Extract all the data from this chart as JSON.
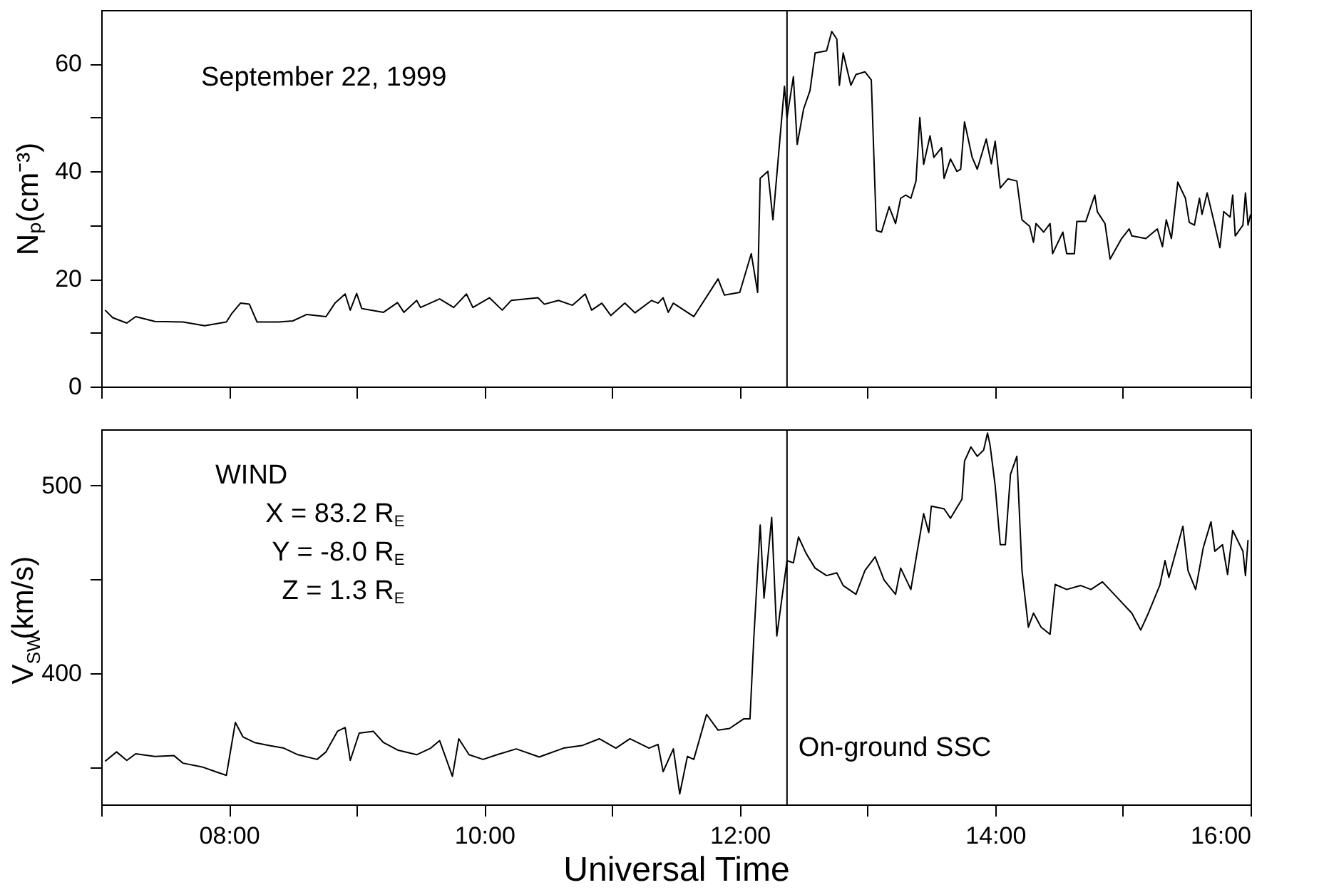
{
  "chart_data": [
    {
      "type": "line",
      "ylabel": "Nₚ(cm⁻³)",
      "annotations": [
        "September 22, 1999"
      ],
      "grid": false,
      "tick_labels": "y",
      "xlim": [
        7,
        16
      ],
      "xticks": [
        {
          "value": 7,
          "label": null
        },
        {
          "value": 8,
          "label": null
        },
        {
          "value": 9,
          "label": null
        },
        {
          "value": 10,
          "label": null
        },
        {
          "value": 11,
          "label": null
        },
        {
          "value": 12,
          "label": null
        },
        {
          "value": 13,
          "label": null
        },
        {
          "value": 14,
          "label": null
        },
        {
          "value": 15,
          "label": null
        },
        {
          "value": 16,
          "label": null
        }
      ],
      "ylim": [
        0,
        70
      ],
      "yticks": [
        0,
        {
          "value": 10,
          "label": null
        },
        20,
        {
          "value": 30,
          "label": null
        },
        40,
        {
          "value": 50,
          "label": null
        },
        60
      ],
      "ref_lines": [
        {
          "axis": "x",
          "value": 12.37,
          "label": null,
          "color": "#000000"
        }
      ],
      "series": [
        {
          "color": "#000000",
          "x": [
            7.03,
            7.09,
            7.2,
            7.27,
            7.42,
            7.64,
            7.81,
            7.98,
            8.02,
            8.09,
            8.16,
            8.22,
            8.39,
            8.5,
            8.61,
            8.76,
            8.83,
            8.91,
            8.95,
            9.0,
            9.04,
            9.21,
            9.32,
            9.37,
            9.47,
            9.5,
            9.65,
            9.76,
            9.86,
            9.91,
            10.04,
            10.14,
            10.21,
            10.42,
            10.47,
            10.58,
            10.69,
            10.79,
            10.84,
            10.92,
            10.99,
            11.1,
            11.18,
            11.31,
            11.36,
            11.4,
            11.44,
            11.48,
            11.64,
            11.83,
            11.88,
            12.0,
            12.09,
            12.14,
            12.16,
            12.22,
            12.26,
            12.35,
            12.37,
            12.42,
            12.45,
            12.5,
            12.55,
            12.59,
            12.68,
            12.72,
            12.76,
            12.78,
            12.81,
            12.87,
            12.91,
            12.98,
            13.03,
            13.07,
            13.11,
            13.17,
            13.22,
            13.26,
            13.3,
            13.34,
            13.38,
            13.41,
            13.44,
            13.49,
            13.52,
            13.58,
            13.6,
            13.65,
            13.7,
            13.73,
            13.76,
            13.82,
            13.86,
            13.93,
            13.97,
            14.0,
            14.04,
            14.1,
            14.17,
            14.21,
            14.27,
            14.3,
            14.32,
            14.38,
            14.43,
            14.45,
            14.53,
            14.56,
            14.62,
            14.64,
            14.71,
            14.78,
            14.8,
            14.86,
            14.9,
            14.99,
            15.05,
            15.07,
            15.18,
            15.27,
            15.31,
            15.34,
            15.38,
            15.43,
            15.49,
            15.52,
            15.56,
            15.6,
            15.62,
            15.66,
            15.72,
            15.76,
            15.79,
            15.84,
            15.86,
            15.88,
            15.94,
            15.96,
            15.98,
            16.0
          ],
          "values": [
            14.2,
            12.8,
            11.8,
            13,
            12.1,
            12,
            11.3,
            12,
            13.5,
            15.5,
            15.3,
            12,
            12,
            12.2,
            13.4,
            13,
            15.5,
            17.2,
            14.2,
            17.3,
            14.5,
            13.8,
            15.6,
            13.8,
            16,
            14.7,
            16.3,
            14.7,
            17.2,
            14.7,
            16.5,
            14.2,
            16,
            16.5,
            15.3,
            16,
            15.1,
            17.2,
            14.2,
            15.5,
            13.2,
            15.5,
            13.7,
            16,
            15.5,
            16.5,
            13.8,
            15.5,
            13,
            20,
            17,
            17.5,
            24.7,
            17.5,
            38.7,
            40,
            31,
            55.8,
            50,
            57.6,
            45,
            51.6,
            55,
            62,
            62.4,
            66,
            64.6,
            56,
            62,
            56,
            58,
            58.5,
            57,
            29,
            28.7,
            33.4,
            30.3,
            35,
            35.6,
            35,
            38.2,
            50,
            41.3,
            46.6,
            42.6,
            44.4,
            38.7,
            42.3,
            40,
            40.4,
            49.2,
            42.6,
            40.4,
            46,
            41.4,
            45.6,
            36.9,
            38.6,
            38.2,
            31,
            29.8,
            26.8,
            30.3,
            28.7,
            30.3,
            24.7,
            28.7,
            24.7,
            24.7,
            30.7,
            30.7,
            35.6,
            32.5,
            30.3,
            23.7,
            27.5,
            29.3,
            28,
            27.5,
            29.3,
            26,
            31,
            27.5,
            38,
            35,
            30.5,
            30,
            35,
            32,
            36,
            30,
            25.8,
            32.5,
            31.5,
            35.6,
            28,
            30,
            36,
            30,
            32
          ]
        }
      ]
    },
    {
      "type": "line",
      "ylabel": "V$_{SW}$(km/s)",
      "xlabel": "Universal Time",
      "annotations": [
        "WIND",
        "X = 83.2 R$_{E}$",
        "Y =  -8.0 R$_{E}$",
        "Z =   1.3 R$_{E}$"
      ],
      "grid": false,
      "xlim": [
        7,
        16
      ],
      "xticks": [
        {
          "value": 7,
          "label": null
        },
        {
          "value": 8,
          "label": "08:00"
        },
        {
          "value": 9,
          "label": null
        },
        {
          "value": 10,
          "label": "10:00"
        },
        {
          "value": 11,
          "label": null
        },
        {
          "value": 12,
          "label": "12:00"
        },
        {
          "value": 13,
          "label": null
        },
        {
          "value": 14,
          "label": "14:00"
        },
        {
          "value": 15,
          "label": null
        },
        {
          "value": 16,
          "label": "16:00"
        }
      ],
      "ylim": [
        330,
        530
      ],
      "yticks": [
        {
          "value": 350,
          "label": null
        },
        400,
        {
          "value": 450,
          "label": null
        },
        500
      ],
      "ref_lines": [
        {
          "axis": "x",
          "value": 12.37,
          "label": "On-ground SSC",
          "color": "#000000"
        }
      ],
      "series": [
        {
          "color": "#000000",
          "x": [
            7.03,
            7.12,
            7.2,
            7.27,
            7.42,
            7.57,
            7.64,
            7.79,
            7.89,
            7.98,
            8.05,
            8.11,
            8.2,
            8.31,
            8.43,
            8.54,
            8.69,
            8.76,
            8.85,
            8.91,
            8.95,
            9.02,
            9.13,
            9.21,
            9.32,
            9.47,
            9.58,
            9.65,
            9.75,
            9.8,
            9.88,
            9.99,
            10.1,
            10.25,
            10.43,
            10.62,
            10.77,
            10.9,
            11.03,
            11.14,
            11.29,
            11.36,
            11.4,
            11.48,
            11.53,
            11.59,
            11.64,
            11.74,
            11.83,
            11.92,
            12.03,
            12.08,
            12.11,
            12.16,
            12.19,
            12.25,
            12.29,
            12.37,
            12.42,
            12.46,
            12.52,
            12.59,
            12.68,
            12.76,
            12.81,
            12.91,
            12.98,
            13.06,
            13.13,
            13.22,
            13.26,
            13.34,
            13.39,
            13.44,
            13.48,
            13.5,
            13.6,
            13.65,
            13.74,
            13.76,
            13.81,
            13.86,
            13.91,
            13.94,
            13.96,
            14.0,
            14.04,
            14.08,
            14.12,
            14.17,
            14.21,
            14.26,
            14.3,
            14.36,
            14.43,
            14.47,
            14.56,
            14.67,
            14.75,
            14.84,
            14.95,
            15.07,
            15.14,
            15.2,
            15.29,
            15.33,
            15.36,
            15.47,
            15.51,
            15.57,
            15.63,
            15.69,
            15.72,
            15.78,
            15.82,
            15.86,
            15.94,
            15.96,
            15.98
          ],
          "values": [
            353,
            358,
            353.5,
            357,
            355.6,
            356,
            352,
            350,
            347.6,
            345.5,
            373.7,
            366,
            363,
            361.5,
            360,
            356.5,
            354,
            358,
            369,
            371,
            353.5,
            368,
            369,
            363,
            359,
            356.5,
            360,
            364,
            345,
            365,
            356.5,
            354,
            356.5,
            359.6,
            355.3,
            360,
            361.5,
            365,
            360,
            365,
            360,
            362,
            347.5,
            359.6,
            335.6,
            355.6,
            354,
            378,
            369.6,
            370.5,
            375.6,
            375.6,
            418.5,
            479,
            440,
            483,
            419.8,
            460,
            458.8,
            472.6,
            463.8,
            456,
            452,
            453.5,
            446.7,
            442,
            454.7,
            462,
            449.6,
            442,
            456,
            444.6,
            465,
            485,
            475,
            489,
            487.6,
            482.6,
            492.7,
            513,
            520.6,
            515.6,
            519,
            528,
            521.6,
            500,
            468.5,
            468.5,
            506,
            515.6,
            454.7,
            424.5,
            432,
            424.5,
            420.7,
            447.3,
            444.6,
            446.7,
            444.6,
            448.7,
            440.7,
            432,
            423,
            432,
            447,
            460,
            451,
            478.3,
            454.7,
            444.6,
            467,
            480.7,
            465,
            468.5,
            452.6,
            476.1,
            465,
            452,
            471
          ]
        }
      ]
    }
  ]
}
